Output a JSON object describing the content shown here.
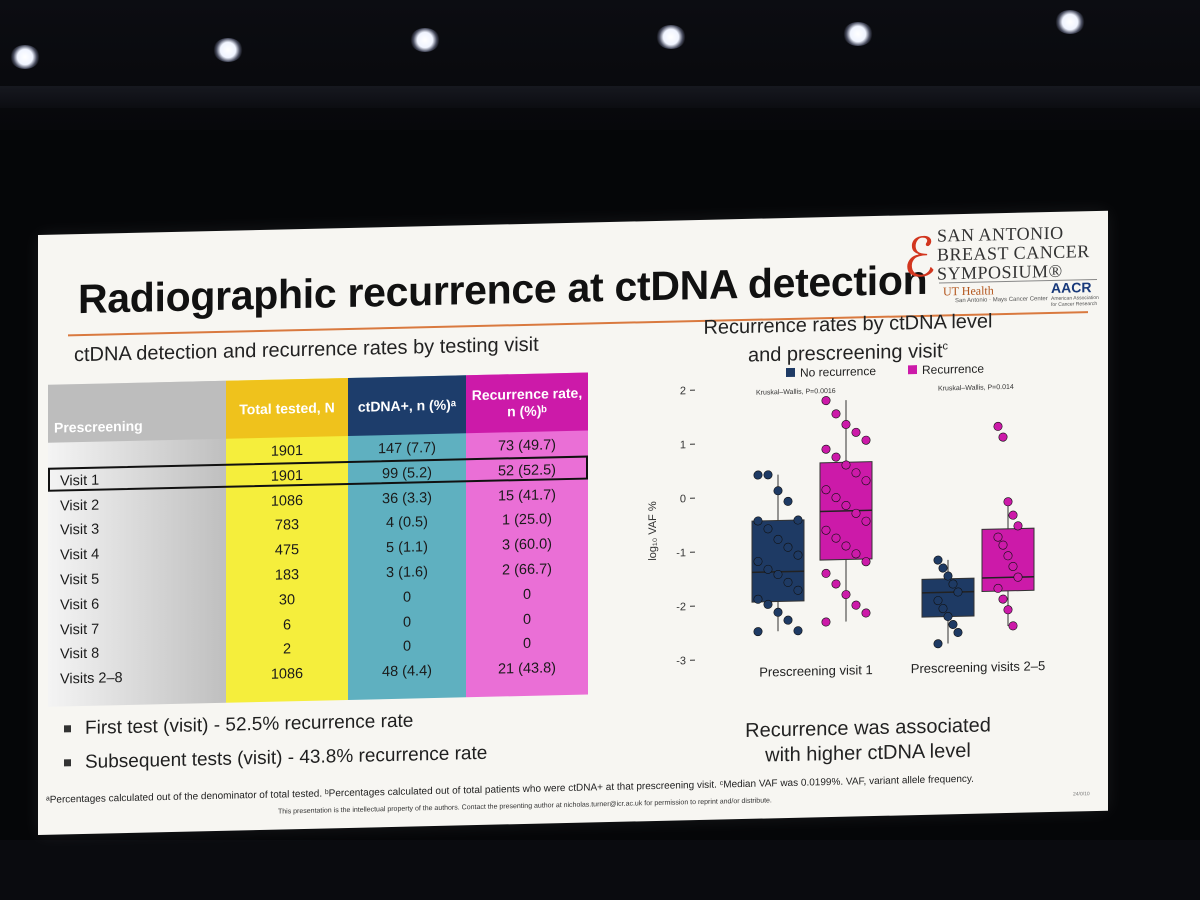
{
  "slide": {
    "title": "Radiographic recurrence at ctDNA detection",
    "logo": {
      "line1": "SAN ANTONIO",
      "line2": "BREAST CANCER",
      "line3": "SYMPOSIUM®",
      "ut_health": "UT Health",
      "ut_sub": "San Antonio · Mays Cancer Center",
      "aacr": "AACR",
      "aacr_sub": "American Association for Cancer Research"
    },
    "table_heading": "ctDNA detection and recurrence rates by testing visit",
    "table": {
      "headers": [
        "Prescreening",
        "Total tested, N",
        "ctDNA+, n (%)ᵃ",
        "Recurrence rate, n (%)ᵇ"
      ],
      "rows": [
        [
          "",
          "1901",
          "147 (7.7)",
          "73 (49.7)"
        ],
        [
          "Visit 1",
          "1901",
          "99 (5.2)",
          "52 (52.5)"
        ],
        [
          "Visit 2",
          "1086",
          "36 (3.3)",
          "15 (41.7)"
        ],
        [
          "Visit 3",
          "783",
          "4 (0.5)",
          "1 (25.0)"
        ],
        [
          "Visit 4",
          "475",
          "5 (1.1)",
          "3 (60.0)"
        ],
        [
          "Visit 5",
          "183",
          "3 (1.6)",
          "2 (66.7)"
        ],
        [
          "Visit 6",
          "30",
          "0",
          "0"
        ],
        [
          "Visit 7",
          "6",
          "0",
          "0"
        ],
        [
          "Visit 8",
          "2",
          "0",
          "0"
        ],
        [
          "Visits 2–8",
          "1086",
          "48 (4.4)",
          "21 (43.8)"
        ]
      ]
    },
    "bullets": [
      "First test (visit) - 52.5% recurrence rate",
      "Subsequent tests (visit) - 43.8% recurrence rate"
    ],
    "chart_heading_line1": "Recurrence rates by ctDNA level",
    "chart_heading_line2": "and prescreening visit",
    "chart_heading_sup": "c",
    "conclusion_line1": "Recurrence was associated",
    "conclusion_line2": "with higher ctDNA level",
    "footnote": "ᵃPercentages calculated out of the denominator of total tested. ᵇPercentages calculated out of total patients who were ctDNA+ at that prescreening visit. ᶜMedian VAF was 0.0199%. VAF, variant allele frequency.",
    "ip_notice": "This presentation is the intellectual property of the authors. Contact the presenting author at nicholas.turner@icr.ac.uk for permission to reprint and/or distribute.",
    "slide_code": "24/0/10"
  },
  "colors": {
    "no_recurrence": "#1e3a64",
    "recurrence": "#cc1aa9",
    "accent_rule": "#d9793f"
  },
  "chart_data": {
    "type": "boxplot",
    "ylabel": "log₁₀ VAF %",
    "ylim": [
      -3,
      2
    ],
    "yticks": [
      "2",
      "1",
      "0",
      "-1",
      "-2",
      "-3"
    ],
    "legend": [
      "No recurrence",
      "Recurrence"
    ],
    "groups": [
      {
        "label": "Prescreening visit 1",
        "stat": "Kruskal–Wallis, P=0.0016",
        "boxes": [
          {
            "series": "No recurrence",
            "q1": -1.95,
            "median": -1.4,
            "q3": -0.45,
            "whisker_low": -2.5,
            "whisker_high": 0.4,
            "points": [
              0.4,
              0.4,
              0.1,
              -0.1,
              -0.45,
              -0.45,
              -0.6,
              -0.8,
              -0.95,
              -1.1,
              -1.2,
              -1.35,
              -1.45,
              -1.6,
              -1.75,
              -1.9,
              -2.0,
              -2.15,
              -2.3,
              -2.5,
              -2.5
            ]
          },
          {
            "series": "Recurrence",
            "q1": -1.2,
            "median": -0.3,
            "q3": 0.6,
            "whisker_low": -2.35,
            "whisker_high": 1.75,
            "points": [
              1.75,
              1.5,
              1.3,
              1.15,
              1.0,
              0.85,
              0.7,
              0.55,
              0.4,
              0.25,
              0.1,
              -0.05,
              -0.2,
              -0.35,
              -0.5,
              -0.65,
              -0.8,
              -0.95,
              -1.1,
              -1.25,
              -1.45,
              -1.65,
              -1.85,
              -2.05,
              -2.2,
              -2.35
            ]
          }
        ]
      },
      {
        "label": "Prescreening visits 2–5",
        "stat": "Kruskal–Wallis, P=0.014",
        "boxes": [
          {
            "series": "No recurrence",
            "q1": -2.3,
            "median": -1.85,
            "q3": -1.6,
            "whisker_low": -2.8,
            "whisker_high": -1.25,
            "points": [
              -1.25,
              -1.4,
              -1.55,
              -1.7,
              -1.85,
              -2.0,
              -2.15,
              -2.3,
              -2.45,
              -2.6,
              -2.8
            ]
          },
          {
            "series": "Recurrence",
            "q1": -1.85,
            "median": -1.6,
            "q3": -0.7,
            "whisker_low": -2.5,
            "whisker_high": -0.2,
            "points": [
              1.2,
              1.0,
              -0.2,
              -0.45,
              -0.65,
              -0.85,
              -1.0,
              -1.2,
              -1.4,
              -1.6,
              -1.8,
              -2.0,
              -2.2,
              -2.5
            ]
          }
        ]
      }
    ]
  }
}
